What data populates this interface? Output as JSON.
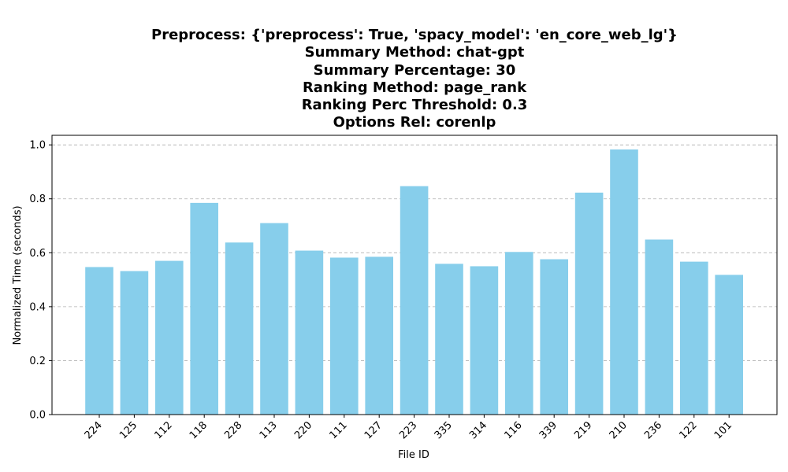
{
  "chart_data": {
    "type": "bar",
    "title_lines": [
      "Preprocess: {'preprocess': True, 'spacy_model': 'en_core_web_lg'}",
      "Summary Method: chat-gpt",
      "Summary Percentage: 30",
      "Ranking Method: page_rank",
      "Ranking Perc Threshold: 0.3",
      "Options Rel: corenlp"
    ],
    "xlabel": "File ID",
    "ylabel": "Normalized Time (seconds)",
    "categories": [
      "224",
      "125",
      "112",
      "118",
      "228",
      "113",
      "220",
      "111",
      "127",
      "223",
      "335",
      "314",
      "116",
      "339",
      "219",
      "210",
      "236",
      "122",
      "101"
    ],
    "values": [
      0.547,
      0.532,
      0.57,
      0.785,
      0.638,
      0.71,
      0.608,
      0.582,
      0.585,
      0.847,
      0.559,
      0.55,
      0.603,
      0.576,
      0.823,
      0.983,
      0.649,
      0.567,
      0.518
    ],
    "ylim": [
      0,
      1.0
    ],
    "yticks": [
      0.0,
      0.2,
      0.4,
      0.6,
      0.8,
      1.0
    ],
    "ytick_labels": [
      "0.0",
      "0.2",
      "0.4",
      "0.6",
      "0.8",
      "1.0"
    ],
    "grid": "y-dashed",
    "bar_color": "#87ceeb",
    "grid_color": "#b0b0b0"
  }
}
